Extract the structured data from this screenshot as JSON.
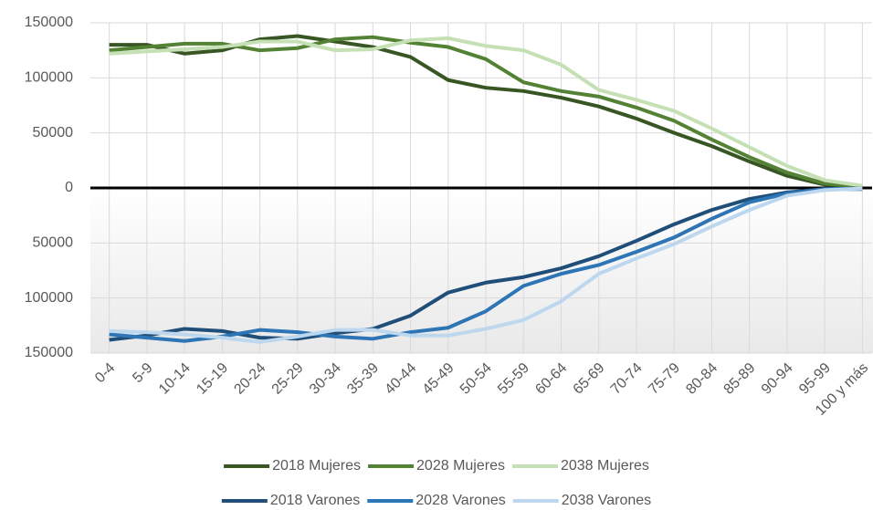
{
  "chart_data": {
    "type": "line",
    "categories": [
      "0-4",
      "5-9",
      "10-14",
      "15-19",
      "20-24",
      "25-29",
      "30-34",
      "35-39",
      "40-44",
      "45-49",
      "50-54",
      "55-59",
      "60-64",
      "65-69",
      "70-74",
      "75-79",
      "80-84",
      "85-89",
      "90-94",
      "95-99",
      "100 y más"
    ],
    "series": [
      {
        "name": "2018 Mujeres",
        "color": "#375623",
        "values": [
          130000,
          130000,
          122000,
          125000,
          135000,
          138000,
          133000,
          128000,
          119000,
          98000,
          91000,
          88000,
          82000,
          74000,
          63000,
          50000,
          38000,
          24000,
          11000,
          3000,
          1000
        ]
      },
      {
        "name": "2028 Mujeres",
        "color": "#548235",
        "values": [
          125000,
          128000,
          131000,
          131000,
          125000,
          127000,
          135000,
          137000,
          132000,
          128000,
          117000,
          96000,
          88000,
          83000,
          73000,
          61000,
          44000,
          28000,
          14000,
          4000,
          1000
        ]
      },
      {
        "name": "2038 Mujeres",
        "color": "#c5e0b4",
        "values": [
          122000,
          124000,
          126000,
          128000,
          133000,
          133000,
          125000,
          126000,
          134000,
          136000,
          129000,
          125000,
          112000,
          89000,
          80000,
          70000,
          54000,
          37000,
          20000,
          7000,
          2000
        ]
      },
      {
        "name": "2018 Varones",
        "color": "#1f4e79",
        "values": [
          -138000,
          -134000,
          -128000,
          -130000,
          -136000,
          -137000,
          -132000,
          -128000,
          -116000,
          -95000,
          -86000,
          -81000,
          -73000,
          -62000,
          -48000,
          -33000,
          -20000,
          -10000,
          -4000,
          -1000,
          -1000
        ]
      },
      {
        "name": "2028 Varones",
        "color": "#2e75b6",
        "values": [
          -133000,
          -136000,
          -139000,
          -135000,
          -129000,
          -131000,
          -135000,
          -137000,
          -131000,
          -127000,
          -112000,
          -89000,
          -78000,
          -70000,
          -58000,
          -45000,
          -28000,
          -13000,
          -5000,
          -1000,
          -500
        ]
      },
      {
        "name": "2038 Varones",
        "color": "#bdd7ee",
        "values": [
          -130000,
          -131000,
          -133000,
          -136000,
          -140000,
          -135000,
          -129000,
          -129000,
          -134000,
          -134000,
          -128000,
          -120000,
          -103000,
          -78000,
          -64000,
          -51000,
          -35000,
          -20000,
          -7000,
          -2000,
          -500
        ]
      }
    ],
    "ylim": [
      -150000,
      150000
    ],
    "yticks": [
      {
        "value": -150000,
        "label": "150000"
      },
      {
        "value": -100000,
        "label": "100000"
      },
      {
        "value": -50000,
        "label": "50000"
      },
      0,
      50000,
      100000,
      150000
    ],
    "grid": true
  }
}
